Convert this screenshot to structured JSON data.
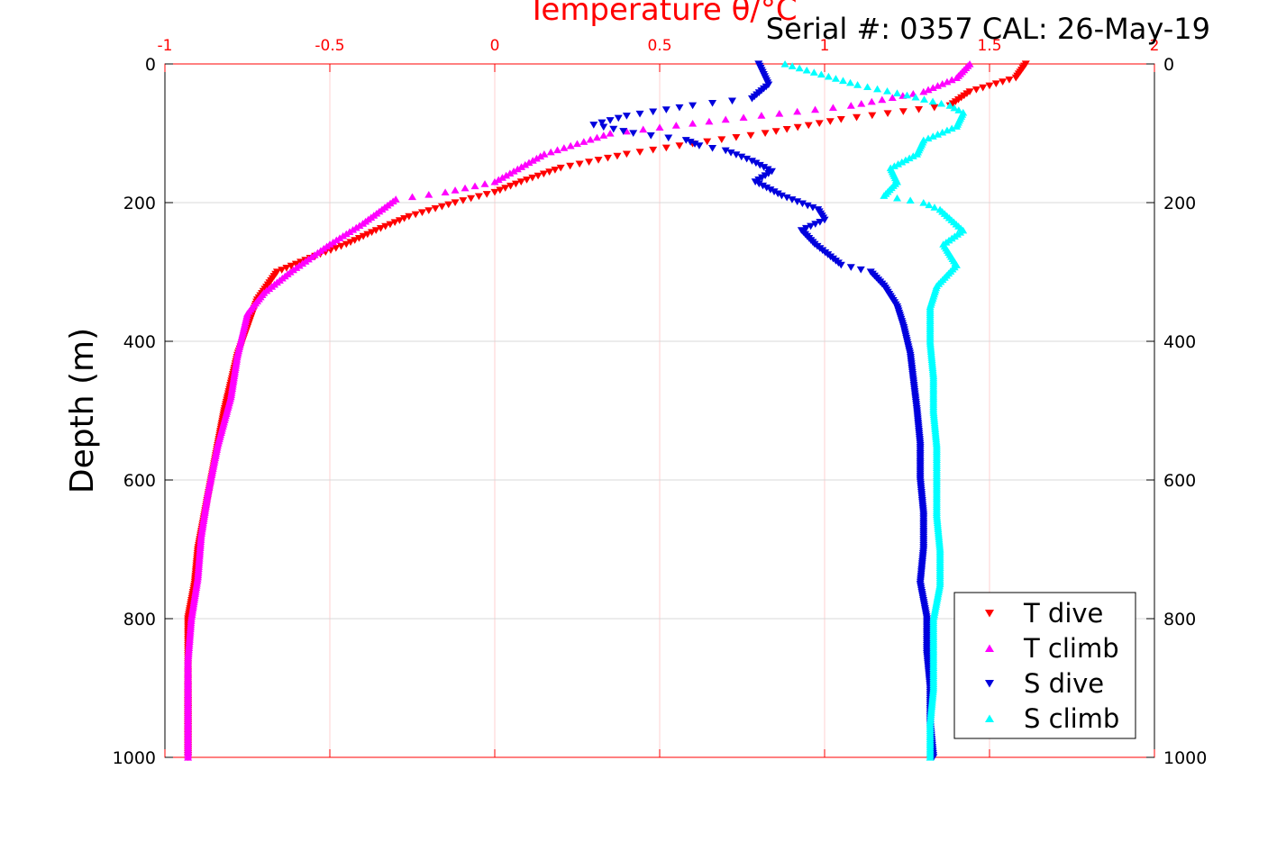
{
  "header_text": "Serial #: 0357  CAL: 26-May-19",
  "chart_data": {
    "type": "scatter",
    "title": "Temperature θ/°C",
    "ylabel": "Depth (m)",
    "xlim": [
      -1,
      2
    ],
    "ylim": [
      0,
      1000
    ],
    "y_reversed": true,
    "grid": true,
    "legend_placement": "bottom-right",
    "xticks": [
      -1,
      -0.5,
      0,
      0.5,
      1,
      1.5,
      2
    ],
    "yticks": [
      0,
      200,
      400,
      600,
      800,
      1000
    ],
    "colors": {
      "axes_x": "#ff0000",
      "axes_y": "#000000",
      "grid_x": "#ffd0d0",
      "grid_y": "#d9d9d9"
    },
    "series": [
      {
        "name": "T dive",
        "marker": "triangle-down",
        "color": "#ff0000",
        "points": [
          [
            1.61,
            0
          ],
          [
            1.58,
            20
          ],
          [
            1.44,
            40
          ],
          [
            1.38,
            60
          ],
          [
            1.05,
            80
          ],
          [
            0.82,
            100
          ],
          [
            0.6,
            115
          ],
          [
            0.4,
            130
          ],
          [
            0.2,
            150
          ],
          [
            0.08,
            170
          ],
          [
            0.0,
            185
          ],
          [
            -0.12,
            200
          ],
          [
            -0.26,
            220
          ],
          [
            -0.36,
            240
          ],
          [
            -0.45,
            260
          ],
          [
            -0.56,
            280
          ],
          [
            -0.66,
            300
          ],
          [
            -0.72,
            340
          ],
          [
            -0.75,
            380
          ],
          [
            -0.78,
            420
          ],
          [
            -0.8,
            460
          ],
          [
            -0.82,
            500
          ],
          [
            -0.84,
            550
          ],
          [
            -0.86,
            600
          ],
          [
            -0.88,
            650
          ],
          [
            -0.9,
            700
          ],
          [
            -0.91,
            750
          ],
          [
            -0.93,
            800
          ],
          [
            -0.93,
            850
          ],
          [
            -0.93,
            900
          ],
          [
            -0.93,
            950
          ],
          [
            -0.93,
            1000
          ]
        ]
      },
      {
        "name": "T climb",
        "marker": "triangle-up",
        "color": "#ff00ff",
        "points": [
          [
            1.44,
            0
          ],
          [
            1.4,
            20
          ],
          [
            1.3,
            40
          ],
          [
            1.08,
            60
          ],
          [
            0.7,
            80
          ],
          [
            0.35,
            100
          ],
          [
            0.15,
            130
          ],
          [
            0.0,
            170
          ],
          [
            -0.15,
            185
          ],
          [
            -0.3,
            195
          ],
          [
            -0.4,
            230
          ],
          [
            -0.5,
            260
          ],
          [
            -0.62,
            300
          ],
          [
            -0.7,
            330
          ],
          [
            -0.75,
            360
          ],
          [
            -0.78,
            420
          ],
          [
            -0.8,
            480
          ],
          [
            -0.84,
            550
          ],
          [
            -0.87,
            620
          ],
          [
            -0.89,
            680
          ],
          [
            -0.9,
            740
          ],
          [
            -0.92,
            800
          ],
          [
            -0.93,
            860
          ],
          [
            -0.93,
            920
          ],
          [
            -0.93,
            1000
          ]
        ]
      },
      {
        "name": "S dive",
        "marker": "triangle-down",
        "color": "#0000dd",
        "points": [
          [
            0.8,
            0
          ],
          [
            0.83,
            30
          ],
          [
            0.78,
            50
          ],
          [
            0.6,
            60
          ],
          [
            0.4,
            75
          ],
          [
            0.3,
            88
          ],
          [
            0.42,
            100
          ],
          [
            0.58,
            110
          ],
          [
            0.62,
            118
          ],
          [
            0.7,
            125
          ],
          [
            0.78,
            140
          ],
          [
            0.84,
            155
          ],
          [
            0.79,
            170
          ],
          [
            0.87,
            190
          ],
          [
            0.98,
            210
          ],
          [
            1.0,
            225
          ],
          [
            0.93,
            240
          ],
          [
            0.97,
            260
          ],
          [
            1.05,
            290
          ],
          [
            1.14,
            300
          ],
          [
            1.18,
            320
          ],
          [
            1.22,
            350
          ],
          [
            1.24,
            380
          ],
          [
            1.26,
            420
          ],
          [
            1.27,
            460
          ],
          [
            1.28,
            500
          ],
          [
            1.29,
            550
          ],
          [
            1.29,
            600
          ],
          [
            1.3,
            650
          ],
          [
            1.3,
            700
          ],
          [
            1.29,
            750
          ],
          [
            1.31,
            800
          ],
          [
            1.31,
            850
          ],
          [
            1.32,
            900
          ],
          [
            1.32,
            950
          ],
          [
            1.33,
            1000
          ]
        ]
      },
      {
        "name": "S climb",
        "marker": "triangle-up",
        "color": "#00ffff",
        "points": [
          [
            0.88,
            0
          ],
          [
            1.1,
            30
          ],
          [
            1.25,
            45
          ],
          [
            1.38,
            60
          ],
          [
            1.42,
            70
          ],
          [
            1.4,
            90
          ],
          [
            1.3,
            110
          ],
          [
            1.28,
            130
          ],
          [
            1.2,
            150
          ],
          [
            1.22,
            170
          ],
          [
            1.18,
            190
          ],
          [
            1.3,
            200
          ],
          [
            1.35,
            210
          ],
          [
            1.42,
            240
          ],
          [
            1.36,
            260
          ],
          [
            1.4,
            290
          ],
          [
            1.34,
            320
          ],
          [
            1.32,
            350
          ],
          [
            1.32,
            400
          ],
          [
            1.33,
            450
          ],
          [
            1.33,
            500
          ],
          [
            1.34,
            550
          ],
          [
            1.34,
            600
          ],
          [
            1.34,
            650
          ],
          [
            1.35,
            700
          ],
          [
            1.35,
            750
          ],
          [
            1.33,
            800
          ],
          [
            1.33,
            850
          ],
          [
            1.33,
            900
          ],
          [
            1.32,
            950
          ],
          [
            1.32,
            1000
          ]
        ]
      }
    ]
  }
}
